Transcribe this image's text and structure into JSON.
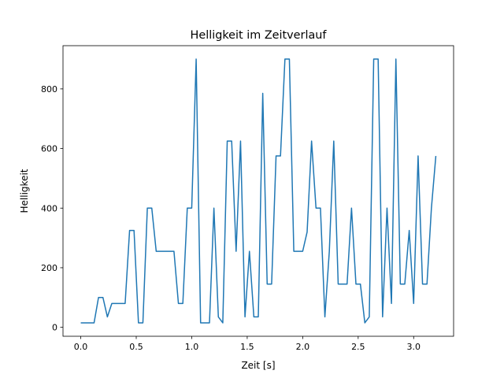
{
  "chart_data": {
    "type": "line",
    "title": "Helligkeit im Zeitverlauf",
    "xlabel": "Zeit [s]",
    "ylabel": "Helligkeit",
    "xlim": [
      -0.16,
      3.36
    ],
    "ylim": [
      -30,
      945
    ],
    "xticks": [
      0.0,
      0.5,
      1.0,
      1.5,
      2.0,
      2.5,
      3.0
    ],
    "xtick_labels": [
      "0.0",
      "0.5",
      "1.0",
      "1.5",
      "2.0",
      "2.5",
      "3.0"
    ],
    "yticks": [
      0,
      200,
      400,
      600,
      800
    ],
    "ytick_labels": [
      "0",
      "200",
      "400",
      "600",
      "800"
    ],
    "grid": false,
    "series": [
      {
        "color": "#1f77b4",
        "x": [
          0.0,
          0.04,
          0.08,
          0.12,
          0.16,
          0.2,
          0.24,
          0.28,
          0.32,
          0.36,
          0.4,
          0.44,
          0.48,
          0.52,
          0.56,
          0.6,
          0.64,
          0.68,
          0.72,
          0.76,
          0.8,
          0.84,
          0.88,
          0.92,
          0.96,
          1.0,
          1.04,
          1.08,
          1.12,
          1.16,
          1.2,
          1.24,
          1.28,
          1.32,
          1.36,
          1.4,
          1.44,
          1.48,
          1.52,
          1.56,
          1.6,
          1.64,
          1.68,
          1.72,
          1.76,
          1.8,
          1.84,
          1.88,
          1.92,
          1.96,
          2.0,
          2.04,
          2.08,
          2.12,
          2.16,
          2.2,
          2.24,
          2.28,
          2.32,
          2.36,
          2.4,
          2.44,
          2.48,
          2.52,
          2.56,
          2.6,
          2.64,
          2.68,
          2.72,
          2.76,
          2.8,
          2.84,
          2.88,
          2.92,
          2.96,
          3.0,
          3.04,
          3.08,
          3.12,
          3.16,
          3.2
        ],
        "y": [
          15,
          15,
          15,
          15,
          100,
          100,
          35,
          80,
          80,
          80,
          80,
          325,
          325,
          15,
          15,
          400,
          400,
          255,
          255,
          255,
          255,
          255,
          80,
          80,
          400,
          400,
          900,
          15,
          15,
          15,
          400,
          35,
          15,
          625,
          625,
          255,
          625,
          35,
          255,
          35,
          35,
          785,
          145,
          145,
          575,
          575,
          900,
          900,
          255,
          255,
          255,
          320,
          625,
          400,
          400,
          35,
          255,
          625,
          145,
          145,
          145,
          400,
          145,
          145,
          15,
          35,
          900,
          900,
          35,
          400,
          80,
          900,
          145,
          145,
          325,
          80,
          575,
          145,
          145,
          400,
          575
        ]
      }
    ]
  }
}
